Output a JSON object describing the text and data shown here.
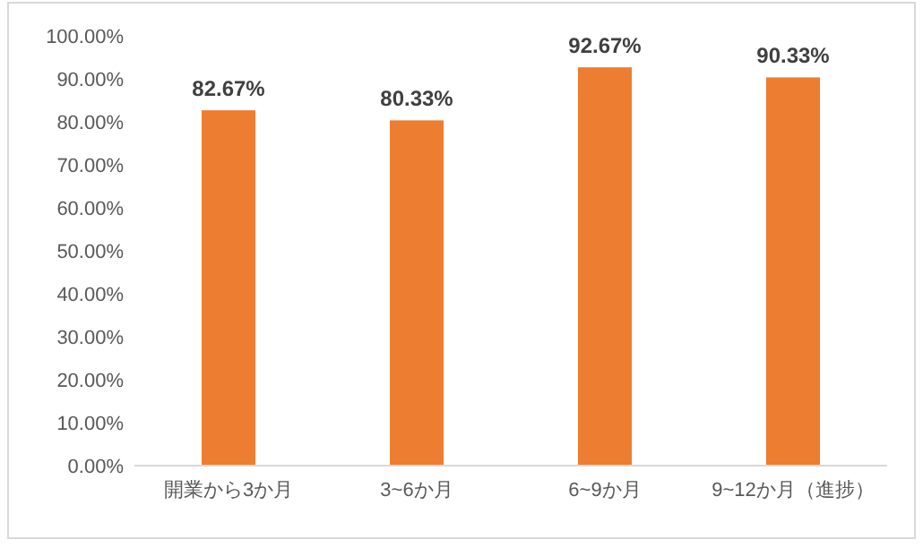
{
  "chart_data": {
    "type": "bar",
    "categories": [
      "開業から3か月",
      "3~6か月",
      "6~9か月",
      "9~12か月（進捗）"
    ],
    "values": [
      82.67,
      80.33,
      92.67,
      90.33
    ],
    "value_labels": [
      "82.67%",
      "80.33%",
      "92.67%",
      "90.33%"
    ],
    "color": "#ed7d31",
    "ylim": [
      0,
      100
    ],
    "yticks": [
      {
        "value": 0,
        "label": "0.00%"
      },
      {
        "value": 10,
        "label": "10.00%"
      },
      {
        "value": 20,
        "label": "20.00%"
      },
      {
        "value": 30,
        "label": "30.00%"
      },
      {
        "value": 40,
        "label": "40.00%"
      },
      {
        "value": 50,
        "label": "50.00%"
      },
      {
        "value": 60,
        "label": "60.00%"
      },
      {
        "value": 70,
        "label": "70.00%"
      },
      {
        "value": 80,
        "label": "80.00%"
      },
      {
        "value": 90,
        "label": "90.00%"
      },
      {
        "value": 100,
        "label": "100.00%"
      }
    ]
  }
}
